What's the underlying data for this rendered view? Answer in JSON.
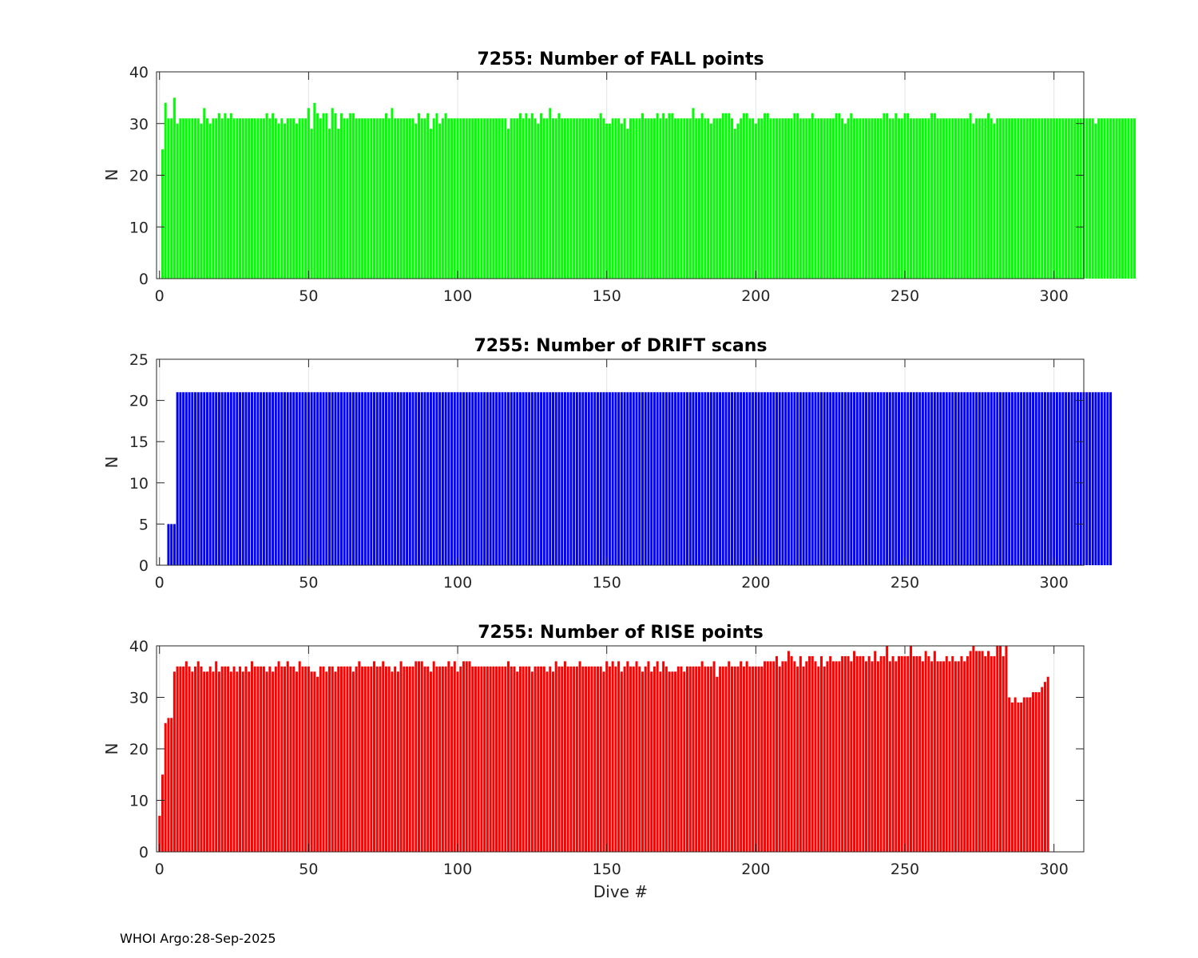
{
  "chart_data": [
    {
      "type": "bar",
      "title": "7255: Number of FALL points",
      "xlabel": "",
      "ylabel": "N",
      "xlim": [
        -1,
        310
      ],
      "ylim": [
        0,
        40
      ],
      "xticks": [
        0,
        50,
        100,
        150,
        200,
        250,
        300
      ],
      "yticks": [
        0,
        10,
        20,
        30,
        40
      ],
      "color": "#00ff00",
      "series": [
        {
          "name": "FALL",
          "x_start": 1,
          "values": [
            25,
            34,
            31,
            31,
            35,
            30,
            31,
            31,
            31,
            31,
            31,
            31,
            31,
            30,
            33,
            31,
            30,
            31,
            31,
            32,
            31,
            32,
            31,
            32,
            31,
            31,
            31,
            31,
            31,
            31,
            31,
            31,
            31,
            31,
            31,
            32,
            31,
            32,
            31,
            30,
            31,
            30,
            31,
            31,
            31,
            30,
            31,
            31,
            31,
            33,
            29,
            34,
            32,
            31,
            32,
            32,
            29,
            33,
            32,
            29,
            32,
            31,
            31,
            32,
            32,
            31,
            31,
            31,
            31,
            31,
            31,
            31,
            31,
            31,
            31,
            32,
            31,
            33,
            31,
            31,
            31,
            31,
            31,
            31,
            31,
            30,
            32,
            31,
            31,
            32,
            29,
            31,
            32,
            30,
            31,
            32,
            31,
            31,
            31,
            31,
            31,
            31,
            31,
            31,
            31,
            31,
            31,
            31,
            31,
            31,
            31,
            31,
            31,
            31,
            31,
            31,
            29,
            31,
            31,
            31,
            32,
            31,
            32,
            31,
            32,
            31,
            30,
            32,
            31,
            31,
            33,
            31,
            31,
            32,
            31,
            31,
            31,
            31,
            31,
            31,
            31,
            31,
            31,
            31,
            31,
            31,
            31,
            32,
            31,
            30,
            30,
            31,
            31,
            31,
            30,
            31,
            29,
            31,
            31,
            31,
            31,
            32,
            31,
            31,
            31,
            31,
            32,
            31,
            32,
            31,
            32,
            32,
            31,
            31,
            31,
            31,
            31,
            31,
            33,
            31,
            31,
            32,
            31,
            31,
            30,
            31,
            31,
            31,
            32,
            32,
            32,
            31,
            29,
            30,
            31,
            32,
            32,
            31,
            31,
            30,
            31,
            31,
            32,
            32,
            31,
            31,
            31,
            31,
            31,
            31,
            31,
            31,
            32,
            32,
            31,
            31,
            31,
            31,
            32,
            31,
            31,
            31,
            31,
            31,
            31,
            31,
            32,
            32,
            31,
            30,
            31,
            32,
            31,
            31,
            31,
            31,
            31,
            31,
            31,
            31,
            31,
            31,
            32,
            32,
            31,
            31,
            32,
            31,
            31,
            32,
            32,
            31,
            31,
            31,
            31,
            31,
            31,
            31,
            32,
            32,
            31,
            31,
            31,
            31,
            31,
            31,
            31,
            31,
            31,
            31,
            31,
            32,
            30,
            31,
            31,
            31,
            31,
            32,
            31,
            30,
            31,
            31,
            31,
            31,
            31,
            31,
            31,
            31,
            31,
            31,
            31,
            31,
            31,
            31,
            31,
            31,
            31,
            31,
            31,
            31,
            31,
            31,
            31,
            31,
            31,
            31,
            31,
            31,
            31,
            31,
            31,
            31,
            31,
            30,
            31,
            31,
            31,
            31,
            31,
            31,
            31,
            31,
            31,
            31,
            31,
            31,
            31
          ]
        }
      ],
      "footer": "WHOI Argo:28-Sep-2025"
    },
    {
      "type": "bar",
      "title": "7255: Number of DRIFT scans",
      "xlabel": "",
      "ylabel": "N",
      "xlim": [
        -1,
        310
      ],
      "ylim": [
        0,
        25
      ],
      "xticks": [
        0,
        50,
        100,
        150,
        200,
        250,
        300
      ],
      "yticks": [
        0,
        5,
        10,
        15,
        20,
        25
      ],
      "color": "#0000ff",
      "series": [
        {
          "name": "DRIFT",
          "x_start": 1,
          "values": [
            0,
            0,
            5,
            5,
            5,
            21,
            21,
            21,
            21,
            21,
            21,
            21,
            21,
            21,
            21,
            21,
            21,
            21,
            21,
            21,
            21,
            21,
            21,
            21,
            21,
            21,
            21,
            21,
            21,
            21,
            21,
            21,
            21,
            21,
            21,
            21,
            21,
            21,
            21,
            21,
            21,
            21,
            21,
            21,
            21,
            21,
            21,
            21,
            21,
            21,
            21,
            21,
            21,
            21,
            21,
            21,
            21,
            21,
            21,
            21,
            21,
            21,
            21,
            21,
            21,
            21,
            21,
            21,
            21,
            21,
            21,
            21,
            21,
            21,
            21,
            21,
            21,
            21,
            21,
            21,
            21,
            21,
            21,
            21,
            21,
            21,
            21,
            21,
            21,
            21,
            21,
            21,
            21,
            21,
            21,
            21,
            21,
            21,
            21,
            21,
            21,
            21,
            21,
            21,
            21,
            21,
            21,
            21,
            21,
            21,
            21,
            21,
            21,
            21,
            21,
            21,
            21,
            21,
            21,
            21,
            21,
            21,
            21,
            21,
            21,
            21,
            21,
            21,
            21,
            21,
            21,
            21,
            21,
            21,
            21,
            21,
            21,
            21,
            21,
            21,
            21,
            21,
            21,
            21,
            21,
            21,
            21,
            21,
            21,
            21,
            21,
            21,
            21,
            21,
            21,
            21,
            21,
            21,
            21,
            21,
            21,
            21,
            21,
            21,
            21,
            21,
            21,
            21,
            21,
            21,
            21,
            21,
            21,
            21,
            21,
            21,
            21,
            21,
            21,
            21,
            21,
            21,
            21,
            21,
            21,
            21,
            21,
            21,
            21,
            21,
            21,
            21,
            21,
            21,
            21,
            21,
            21,
            21,
            21,
            21,
            21,
            21,
            21,
            21,
            21,
            21,
            21,
            21,
            21,
            21,
            21,
            21,
            21,
            21,
            21,
            21,
            21,
            21,
            21,
            21,
            21,
            21,
            21,
            21,
            21,
            21,
            21,
            21,
            21,
            21,
            21,
            21,
            21,
            21,
            21,
            21,
            21,
            21,
            21,
            21,
            21,
            21,
            21,
            21,
            21,
            21,
            21,
            21,
            21,
            21,
            21,
            21,
            21,
            21,
            21,
            21,
            21,
            21,
            21,
            21,
            21,
            21,
            21,
            21,
            21,
            21,
            21,
            21,
            21,
            21,
            21,
            21,
            21,
            21,
            21,
            21,
            21,
            21,
            21,
            21,
            21,
            21,
            21,
            21,
            21,
            21,
            21,
            21,
            21,
            21,
            21,
            21,
            21,
            21,
            21,
            21,
            21,
            21,
            21,
            21,
            21,
            21,
            21,
            21,
            21,
            21,
            21,
            21,
            21,
            21,
            21,
            21,
            21,
            21,
            21,
            21,
            21,
            21,
            21
          ]
        }
      ]
    },
    {
      "type": "bar",
      "title": "7255: Number of RISE points",
      "xlabel": "Dive #",
      "ylabel": "N",
      "xlim": [
        -1,
        310
      ],
      "ylim": [
        0,
        40
      ],
      "xticks": [
        0,
        50,
        100,
        150,
        200,
        250,
        300
      ],
      "yticks": [
        0,
        10,
        20,
        30,
        40
      ],
      "color": "#ff0000",
      "series": [
        {
          "name": "RISE",
          "x_start": 0,
          "values": [
            7,
            15,
            25,
            26,
            26,
            35,
            36,
            36,
            36,
            37,
            36,
            35,
            36,
            37,
            36,
            35,
            35,
            36,
            35,
            37,
            35,
            36,
            36,
            36,
            35,
            36,
            35,
            36,
            35,
            36,
            35,
            37,
            36,
            36,
            36,
            36,
            35,
            36,
            35,
            36,
            37,
            36,
            36,
            37,
            36,
            36,
            35,
            37,
            36,
            36,
            36,
            35,
            35,
            34,
            36,
            36,
            35,
            36,
            36,
            35,
            36,
            36,
            36,
            36,
            36,
            35,
            36,
            37,
            36,
            36,
            36,
            36,
            37,
            36,
            36,
            37,
            36,
            36,
            35,
            36,
            35,
            37,
            36,
            36,
            36,
            36,
            37,
            37,
            37,
            36,
            36,
            35,
            37,
            36,
            36,
            36,
            36,
            37,
            36,
            37,
            35,
            36,
            37,
            37,
            37,
            36,
            36,
            36,
            36,
            36,
            36,
            36,
            36,
            36,
            36,
            36,
            36,
            37,
            36,
            36,
            35,
            36,
            36,
            36,
            36,
            35,
            36,
            36,
            36,
            36,
            35,
            36,
            35,
            37,
            36,
            36,
            37,
            36,
            36,
            36,
            36,
            37,
            36,
            36,
            36,
            36,
            36,
            36,
            36,
            35,
            37,
            36,
            37,
            36,
            37,
            35,
            36,
            37,
            36,
            36,
            37,
            36,
            35,
            36,
            37,
            35,
            36,
            37,
            35,
            37,
            36,
            35,
            35,
            35,
            36,
            36,
            35,
            36,
            36,
            36,
            36,
            36,
            37,
            36,
            36,
            36,
            37,
            34,
            36,
            36,
            36,
            37,
            36,
            36,
            36,
            37,
            36,
            37,
            36,
            36,
            36,
            36,
            36,
            37,
            37,
            37,
            37,
            38,
            36,
            37,
            37,
            39,
            38,
            37,
            36,
            38,
            36,
            37,
            38,
            38,
            37,
            36,
            38,
            36,
            37,
            38,
            37,
            37,
            37,
            38,
            38,
            38,
            37,
            39,
            38,
            38,
            38,
            37,
            38,
            37,
            39,
            37,
            38,
            38,
            40,
            37,
            38,
            37,
            38,
            38,
            38,
            38,
            40,
            38,
            38,
            38,
            37,
            39,
            38,
            37,
            39,
            37,
            37,
            37,
            38,
            37,
            38,
            37,
            37,
            38,
            37,
            38,
            39,
            40,
            39,
            39,
            39,
            38,
            39,
            38,
            38,
            40,
            40,
            38,
            40,
            30,
            29,
            30,
            29,
            29,
            30,
            30,
            30,
            31,
            31,
            31,
            32,
            33,
            34
          ]
        }
      ]
    }
  ],
  "footer": "WHOI Argo:28-Sep-2025"
}
